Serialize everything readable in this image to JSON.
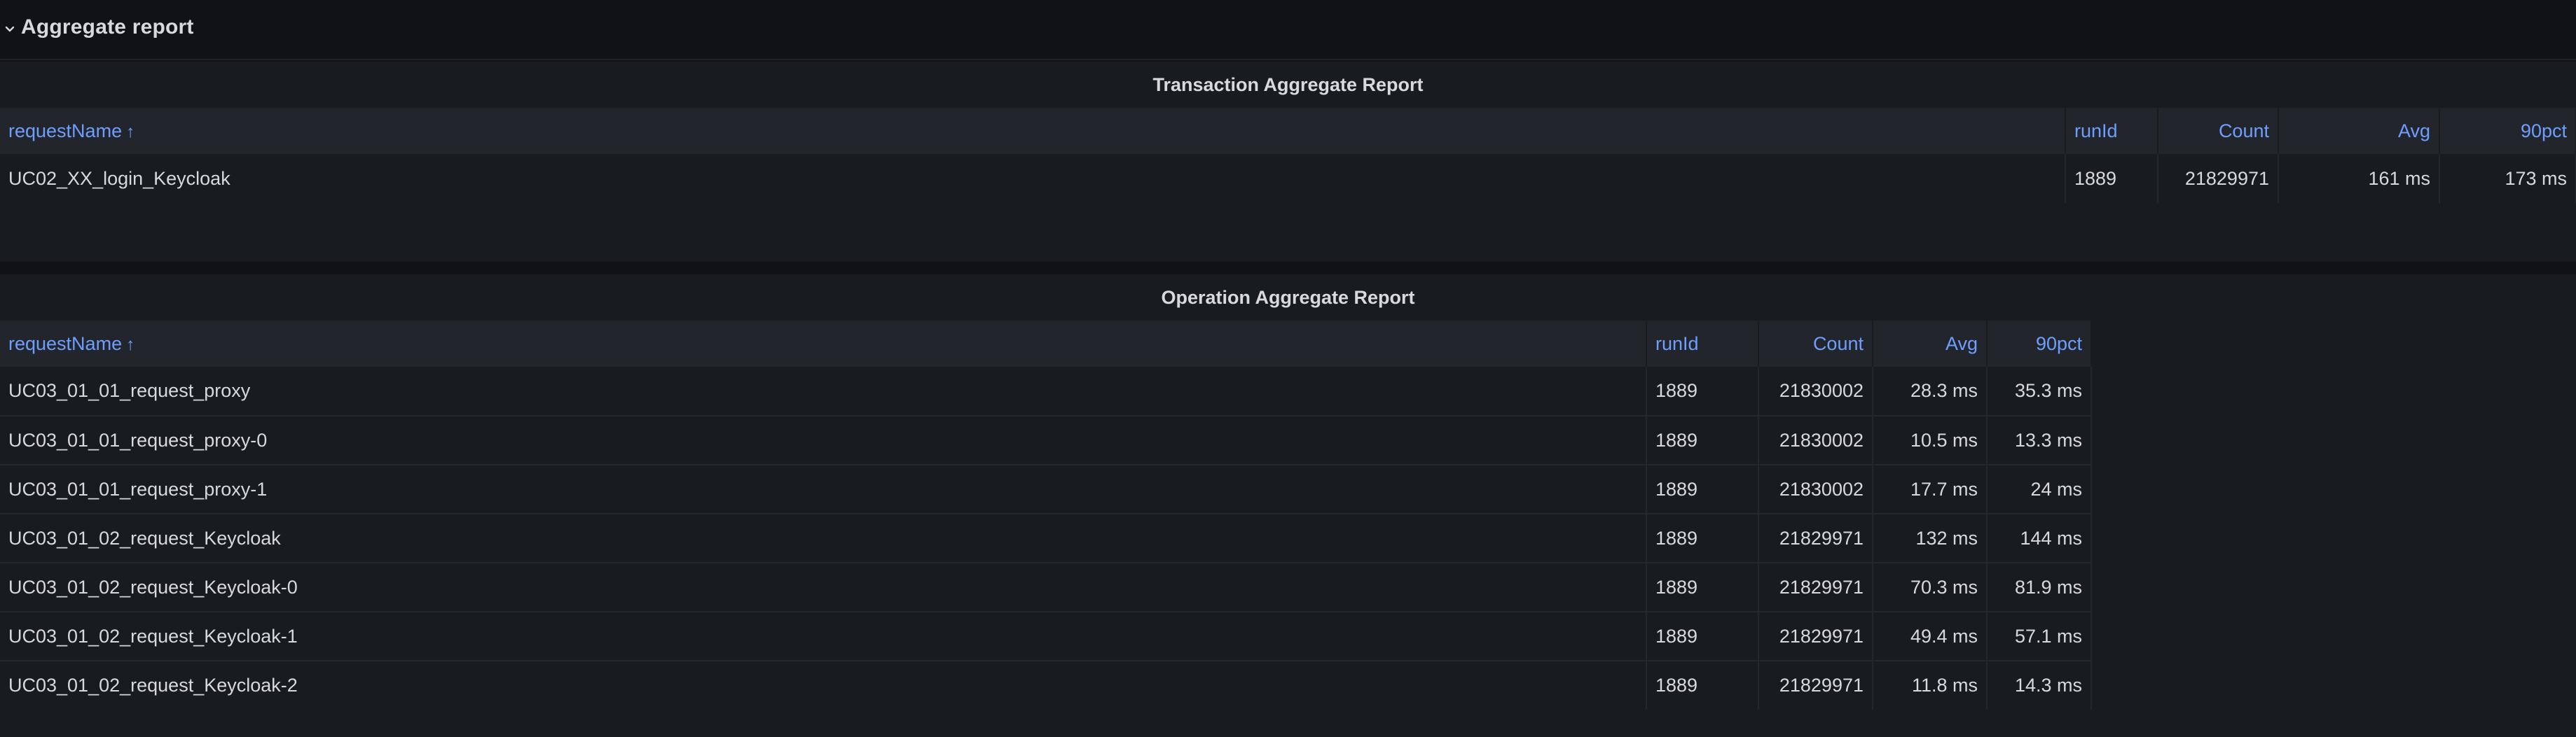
{
  "row": {
    "title": "Aggregate report",
    "chevron_icon": "chevron-down-icon"
  },
  "transaction_panel": {
    "title": "Transaction Aggregate Report",
    "columns": [
      "requestName",
      "runId",
      "Count",
      "Avg",
      "90pct"
    ],
    "sort_arrow": "↑",
    "rows": [
      {
        "requestName": "UC02_XX_login_Keycloak",
        "runId": "1889",
        "count": "21829971",
        "avg": "161 ms",
        "p90": "173 ms"
      }
    ]
  },
  "operation_panel": {
    "title": "Operation Aggregate Report",
    "columns": [
      "requestName",
      "runId",
      "Count",
      "Avg",
      "90pct"
    ],
    "sort_arrow": "↑",
    "rows": [
      {
        "requestName": "UC03_01_01_request_proxy",
        "runId": "1889",
        "count": "21830002",
        "avg": "28.3 ms",
        "p90": "35.3 ms"
      },
      {
        "requestName": "UC03_01_01_request_proxy-0",
        "runId": "1889",
        "count": "21830002",
        "avg": "10.5 ms",
        "p90": "13.3 ms"
      },
      {
        "requestName": "UC03_01_01_request_proxy-1",
        "runId": "1889",
        "count": "21830002",
        "avg": "17.7 ms",
        "p90": "24 ms"
      },
      {
        "requestName": "UC03_01_02_request_Keycloak",
        "runId": "1889",
        "count": "21829971",
        "avg": "132 ms",
        "p90": "144 ms"
      },
      {
        "requestName": "UC03_01_02_request_Keycloak-0",
        "runId": "1889",
        "count": "21829971",
        "avg": "70.3 ms",
        "p90": "81.9 ms"
      },
      {
        "requestName": "UC03_01_02_request_Keycloak-1",
        "runId": "1889",
        "count": "21829971",
        "avg": "49.4 ms",
        "p90": "57.1 ms"
      },
      {
        "requestName": "UC03_01_02_request_Keycloak-2",
        "runId": "1889",
        "count": "21829971",
        "avg": "11.8 ms",
        "p90": "14.3 ms"
      }
    ]
  },
  "colors": {
    "background": "#111217",
    "panel": "#181b1f",
    "header_bg": "#22252b",
    "header_text": "#6e9fff",
    "text": "#d8d9e0"
  }
}
